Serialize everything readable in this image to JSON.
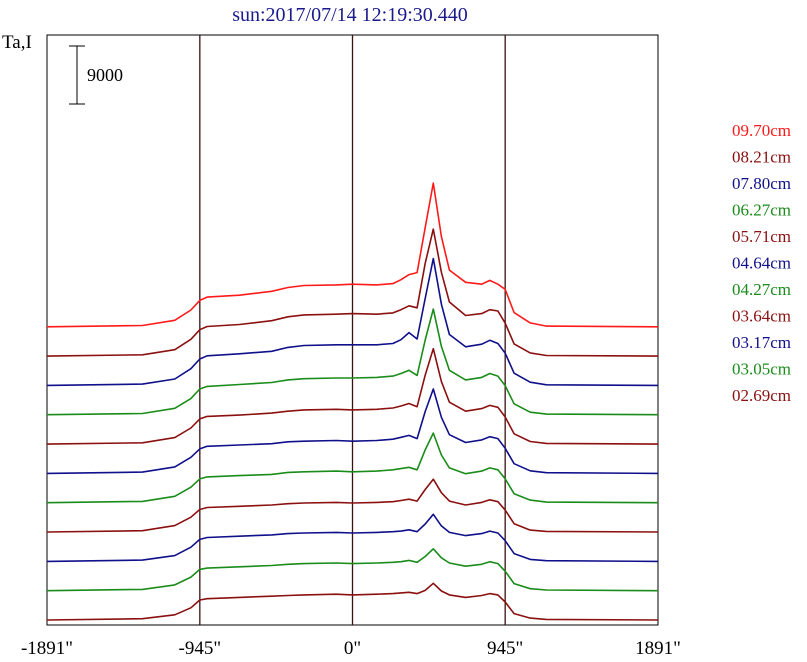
{
  "chart_data": {
    "type": "line",
    "title": "sun:2017/07/14 12:19:30.440",
    "ylabel": "Ta,I",
    "xlabel": "",
    "x_ticks": [
      {
        "value": -1891,
        "label": "-1891\""
      },
      {
        "value": -945,
        "label": "-945\""
      },
      {
        "value": 0,
        "label": "0\""
      },
      {
        "value": 945,
        "label": "945\""
      },
      {
        "value": 1891,
        "label": "1891\""
      }
    ],
    "xlim": [
      -1891,
      1891
    ],
    "vertical_lines": [
      -945,
      0,
      945
    ],
    "scale_bar": {
      "label": "9000",
      "value": 9000
    },
    "grid": false,
    "legend_position": "right",
    "offset_per_series": 4550,
    "x": [
      -1891,
      -1300,
      -1100,
      -1000,
      -945,
      -900,
      -700,
      -500,
      -400,
      -300,
      -100,
      0,
      150,
      250,
      300,
      350,
      400,
      450,
      500,
      550,
      600,
      700,
      800,
      850,
      900,
      945,
      1000,
      1100,
      1200,
      1891
    ],
    "series": [
      {
        "name": "09.70cm",
        "color": "#ff1a1a",
        "values": [
          0,
          200,
          1000,
          2600,
          4100,
          4600,
          4900,
          5500,
          6100,
          6400,
          6500,
          6600,
          6500,
          6700,
          7300,
          8100,
          8400,
          15400,
          22300,
          14000,
          8800,
          6900,
          6600,
          7200,
          6600,
          5800,
          2200,
          600,
          100,
          0
        ]
      },
      {
        "name": "08.21cm",
        "color": "#8b1010",
        "values": [
          0,
          200,
          1000,
          2600,
          4100,
          4600,
          4900,
          5500,
          6100,
          6400,
          6500,
          6600,
          6500,
          6700,
          7200,
          7800,
          7500,
          14400,
          19700,
          13000,
          8400,
          6300,
          6600,
          7200,
          7000,
          5100,
          1900,
          500,
          100,
          0
        ]
      },
      {
        "name": "07.80cm",
        "color": "#10108b",
        "values": [
          0,
          200,
          1000,
          2600,
          4100,
          4600,
          4900,
          5300,
          5900,
          6200,
          6300,
          6300,
          6300,
          6500,
          7100,
          8200,
          7200,
          13500,
          19700,
          12600,
          7900,
          6000,
          6400,
          7000,
          6500,
          5000,
          1900,
          500,
          100,
          0
        ]
      },
      {
        "name": "06.27cm",
        "color": "#1a8c1a",
        "values": [
          0,
          200,
          1000,
          2500,
          4000,
          4400,
          4700,
          5000,
          5400,
          5600,
          5700,
          5700,
          5800,
          6000,
          6400,
          6900,
          6100,
          11600,
          16400,
          10600,
          6900,
          5400,
          5800,
          6400,
          6000,
          4500,
          1700,
          400,
          100,
          0
        ]
      },
      {
        "name": "05.71cm",
        "color": "#8b1010",
        "values": [
          0,
          200,
          1000,
          2500,
          3900,
          4300,
          4500,
          4800,
          5100,
          5300,
          5400,
          5300,
          5400,
          5600,
          5900,
          6300,
          5800,
          10700,
          14800,
          9700,
          6500,
          5100,
          5500,
          6000,
          5700,
          4200,
          1600,
          400,
          100,
          0
        ]
      },
      {
        "name": "04.64cm",
        "color": "#10108b",
        "values": [
          0,
          200,
          1000,
          2500,
          3800,
          4200,
          4400,
          4600,
          4900,
          5000,
          5100,
          5000,
          5100,
          5300,
          5600,
          5900,
          5400,
          9600,
          13100,
          8700,
          6000,
          4800,
          5200,
          5700,
          5400,
          3900,
          1500,
          400,
          100,
          0
        ]
      },
      {
        "name": "04.27cm",
        "color": "#1a8c1a",
        "values": [
          0,
          200,
          1000,
          2400,
          3700,
          4000,
          4200,
          4400,
          4700,
          4800,
          4900,
          4800,
          4900,
          5100,
          5300,
          5500,
          5100,
          8200,
          10800,
          7400,
          5400,
          4500,
          4900,
          5400,
          5100,
          3700,
          1400,
          400,
          100,
          0
        ]
      },
      {
        "name": "03.64cm",
        "color": "#8b1010",
        "values": [
          0,
          200,
          1000,
          2300,
          3500,
          3800,
          4000,
          4200,
          4400,
          4500,
          4600,
          4500,
          4600,
          4700,
          4900,
          5100,
          4800,
          6600,
          8200,
          6100,
          4800,
          4200,
          4600,
          5000,
          4700,
          3400,
          1300,
          300,
          100,
          0
        ]
      },
      {
        "name": "03.17cm",
        "color": "#10108b",
        "values": [
          0,
          200,
          900,
          2200,
          3400,
          3700,
          3900,
          4100,
          4300,
          4400,
          4500,
          4400,
          4500,
          4600,
          4700,
          4900,
          4600,
          5800,
          7300,
          5500,
          4500,
          4000,
          4300,
          4700,
          4400,
          3200,
          1200,
          300,
          100,
          0
        ]
      },
      {
        "name": "03.05cm",
        "color": "#1a8c1a",
        "values": [
          0,
          200,
          900,
          2100,
          3300,
          3500,
          3700,
          3900,
          4100,
          4200,
          4300,
          4200,
          4300,
          4400,
          4500,
          4700,
          4400,
          5300,
          6500,
          5100,
          4300,
          3800,
          4100,
          4500,
          4200,
          3000,
          1100,
          300,
          100,
          0
        ]
      },
      {
        "name": "02.69cm",
        "color": "#8b1010",
        "values": [
          0,
          200,
          800,
          1900,
          3100,
          3300,
          3500,
          3700,
          3800,
          3900,
          4000,
          3900,
          4000,
          4100,
          4200,
          4300,
          4100,
          4600,
          5700,
          4500,
          3900,
          3500,
          3800,
          4100,
          3900,
          2800,
          1000,
          300,
          100,
          0
        ]
      }
    ]
  }
}
